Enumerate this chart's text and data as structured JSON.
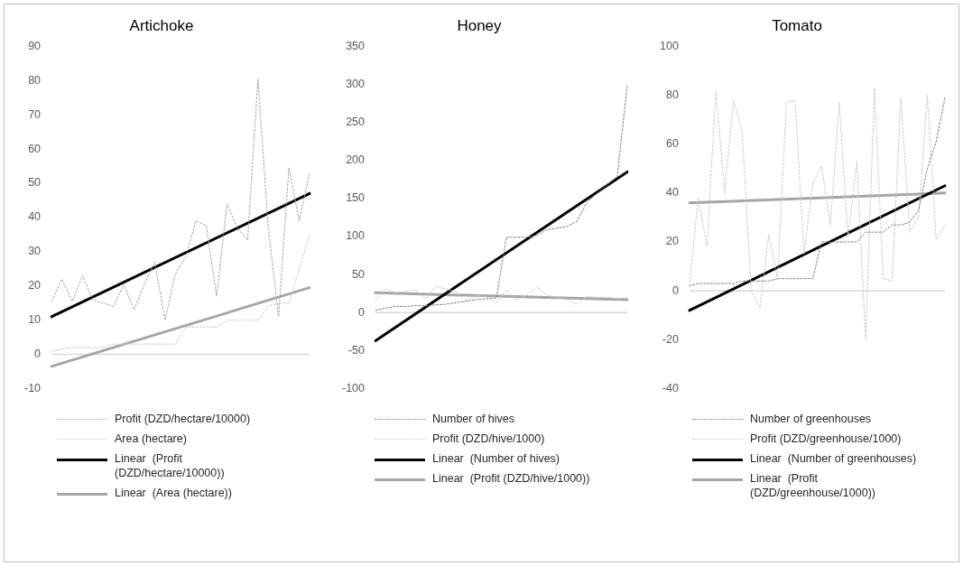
{
  "chart_data": [
    {
      "type": "line",
      "title": "Artichoke",
      "categories": [
        null,
        null,
        null,
        null,
        null,
        null,
        null,
        null,
        null,
        null,
        null,
        null,
        null,
        null,
        null,
        null,
        null,
        null,
        null,
        null,
        null,
        null,
        null,
        null,
        null,
        null
      ],
      "series": [
        {
          "name": "Profit (DZD/hectare/10000)",
          "color": "#a6a6a6",
          "line_style": "dotted",
          "values": [
            15.5,
            22,
            15.5,
            23,
            16,
            15,
            14,
            20.5,
            13,
            20.5,
            27,
            10,
            23.5,
            28.5,
            39,
            37.5,
            17,
            44,
            37,
            33.5,
            80.5,
            37,
            11,
            54.5,
            39,
            53
          ]
        },
        {
          "name": "Area (hectare)",
          "color": "#c9c9c9",
          "line_style": "dotted",
          "values": [
            1,
            1.5,
            2,
            2,
            2,
            2,
            3,
            3,
            3,
            3,
            3,
            3,
            3,
            8,
            8,
            8,
            8,
            10,
            10,
            10,
            10,
            14,
            15,
            15,
            25,
            35
          ]
        },
        {
          "name": "Linear  (Profit (DZD/hectare/10000))",
          "color": "#000000",
          "line_style": "solid",
          "values": [
            11,
            null,
            null,
            null,
            null,
            null,
            null,
            null,
            null,
            null,
            null,
            null,
            null,
            null,
            null,
            null,
            null,
            null,
            null,
            null,
            null,
            null,
            null,
            null,
            null,
            47
          ]
        },
        {
          "name": "Linear  (Area (hectare))",
          "color": "#a6a6a6",
          "line_style": "solid",
          "values": [
            -3.5,
            null,
            null,
            null,
            null,
            null,
            null,
            null,
            null,
            null,
            null,
            null,
            null,
            null,
            null,
            null,
            null,
            null,
            null,
            null,
            null,
            null,
            null,
            null,
            null,
            19.5
          ]
        }
      ],
      "ylim": [
        -10,
        90
      ],
      "yticks": [
        -10,
        0,
        10,
        20,
        30,
        40,
        50,
        60,
        70,
        80,
        90
      ],
      "ref_lines": [
        {
          "axis": "y",
          "value": 0,
          "color": "#d9d9d9"
        }
      ],
      "grid": false,
      "legend": "bottom",
      "tick_labels": "y",
      "marker": "none"
    },
    {
      "type": "line",
      "title": "Honey",
      "categories": [
        null,
        null,
        null,
        null,
        null,
        null,
        null,
        null,
        null,
        null,
        null,
        null,
        null,
        null,
        null,
        null,
        null,
        null,
        null,
        null,
        null,
        null,
        null,
        null,
        null,
        null
      ],
      "series": [
        {
          "name": "Number of hives",
          "color": "#7f7f7f",
          "line_style": "dotted",
          "values": [
            3,
            6,
            8,
            8,
            9,
            9,
            10,
            11,
            13,
            15,
            17,
            18,
            19,
            99,
            99,
            99,
            101,
            109,
            111,
            113,
            120,
            145,
            157,
            168,
            179,
            299
          ]
        },
        {
          "name": "Profit (DZD/hive/1000)",
          "color": "#c9c9c9",
          "line_style": "dotted",
          "values": [
            16,
            31,
            26,
            28,
            30,
            18,
            35,
            31,
            28,
            15,
            23,
            21,
            13,
            30,
            16,
            23,
            33,
            23,
            20,
            17,
            11,
            21,
            20,
            20,
            18,
            20
          ]
        },
        {
          "name": "Linear  (Number of hives)",
          "color": "#000000",
          "line_style": "solid",
          "values": [
            -37,
            null,
            null,
            null,
            null,
            null,
            null,
            null,
            null,
            null,
            null,
            null,
            null,
            null,
            null,
            null,
            null,
            null,
            null,
            null,
            null,
            null,
            null,
            null,
            null,
            185
          ]
        },
        {
          "name": "Linear  (Profit (DZD/hive/1000))",
          "color": "#a6a6a6",
          "line_style": "solid",
          "values": [
            26,
            null,
            null,
            null,
            null,
            null,
            null,
            null,
            null,
            null,
            null,
            null,
            null,
            null,
            null,
            null,
            null,
            null,
            null,
            null,
            null,
            null,
            null,
            null,
            null,
            17
          ]
        }
      ],
      "ylim": [
        -100,
        350
      ],
      "yticks": [
        -100,
        -50,
        0,
        50,
        100,
        150,
        200,
        250,
        300,
        350
      ],
      "ref_lines": [
        {
          "axis": "y",
          "value": 0,
          "color": "#d9d9d9"
        }
      ],
      "grid": false,
      "legend": "bottom",
      "tick_labels": "y",
      "marker": "none"
    },
    {
      "type": "line",
      "title": "Tomato",
      "categories": [
        null,
        null,
        null,
        null,
        null,
        null,
        null,
        null,
        null,
        null,
        null,
        null,
        null,
        null,
        null,
        null,
        null,
        null,
        null,
        null,
        null,
        null,
        null,
        null,
        null,
        null,
        null,
        null,
        null,
        null
      ],
      "series": [
        {
          "name": "Number of greenhouses",
          "color": "#7f7f7f",
          "line_style": "dotted",
          "values": [
            2,
            3,
            3,
            3,
            3,
            3,
            4,
            4,
            4,
            4,
            5,
            5,
            5,
            5,
            5,
            20,
            20,
            20,
            20,
            20,
            24,
            24,
            24,
            27,
            27,
            28,
            33,
            50,
            61,
            79
          ]
        },
        {
          "name": "Profit (DZD/greenhouse/1000)",
          "color": "#c9c9c9",
          "line_style": "dotted",
          "values": [
            2,
            38,
            18,
            82,
            40,
            78,
            65,
            0,
            -7,
            23,
            5,
            77,
            78,
            15,
            44,
            51,
            27,
            77,
            22,
            53,
            -20,
            83,
            5,
            4,
            79,
            24,
            30,
            80,
            21,
            27
          ]
        },
        {
          "name": "Linear  (Number of greenhouses)",
          "color": "#000000",
          "line_style": "solid",
          "values": [
            -8,
            null,
            null,
            null,
            null,
            null,
            null,
            null,
            null,
            null,
            null,
            null,
            null,
            null,
            null,
            null,
            null,
            null,
            null,
            null,
            null,
            null,
            null,
            null,
            null,
            null,
            null,
            null,
            null,
            43
          ]
        },
        {
          "name": "Linear  (Profit (DZD/greenhouse/1000))",
          "color": "#a6a6a6",
          "line_style": "solid",
          "values": [
            36,
            null,
            null,
            null,
            null,
            null,
            null,
            null,
            null,
            null,
            null,
            null,
            null,
            null,
            null,
            null,
            null,
            null,
            null,
            null,
            null,
            null,
            null,
            null,
            null,
            null,
            null,
            null,
            null,
            40
          ]
        }
      ],
      "ylim": [
        -40,
        100
      ],
      "yticks": [
        -40,
        -20,
        0,
        20,
        40,
        60,
        80,
        100
      ],
      "ref_lines": [
        {
          "axis": "y",
          "value": 0,
          "color": "#d9d9d9"
        }
      ],
      "grid": false,
      "legend": "bottom",
      "tick_labels": "y",
      "marker": "none"
    }
  ]
}
